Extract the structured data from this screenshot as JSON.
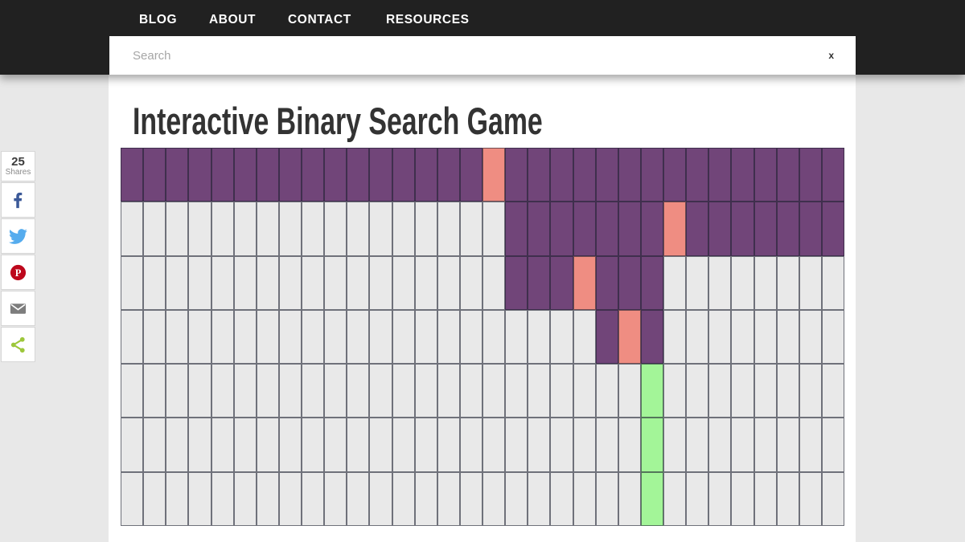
{
  "header": {
    "nav": [
      {
        "label": "BLOG"
      },
      {
        "label": "ABOUT"
      },
      {
        "label": "CONTACT"
      },
      {
        "label": "RESOURCES"
      }
    ]
  },
  "search": {
    "placeholder": "Search",
    "value": "",
    "close_label": "x"
  },
  "main": {
    "title": "Interactive Binary Search Game"
  },
  "share": {
    "count": "25",
    "count_label": "Shares",
    "colors": {
      "facebook": "#3b5998",
      "twitter": "#55acee",
      "pinterest": "#bd081c",
      "email": "#7d7d7d",
      "share": "#9dc73b"
    }
  },
  "grid": {
    "columns": 32,
    "row_count": 7,
    "colors": {
      "range": "#714579",
      "guess": "#ef8d82",
      "found": "#a3f598",
      "empty": "#e9e9e9"
    },
    "legend": {
      "R": "range",
      "G": "guess",
      "F": "found",
      ".": "empty"
    },
    "row_states": [
      "RRRRRRRRRRRRRRRRGRRRRRRRRRRRRRRR",
      ".................RRRRRRRGRRRRRRR",
      ".................RRRGRRR........",
      ".....................RGR........",
      ".......................F........",
      ".......................F........",
      ".......................F........"
    ],
    "steps": [
      {
        "low": 0,
        "high": 31,
        "guess": 16
      },
      {
        "low": 17,
        "high": 31,
        "guess": 24
      },
      {
        "low": 17,
        "high": 23,
        "guess": 20
      },
      {
        "low": 21,
        "high": 23,
        "guess": 22
      },
      {
        "found": 23
      },
      {
        "found": 23
      },
      {
        "found": 23
      }
    ]
  }
}
